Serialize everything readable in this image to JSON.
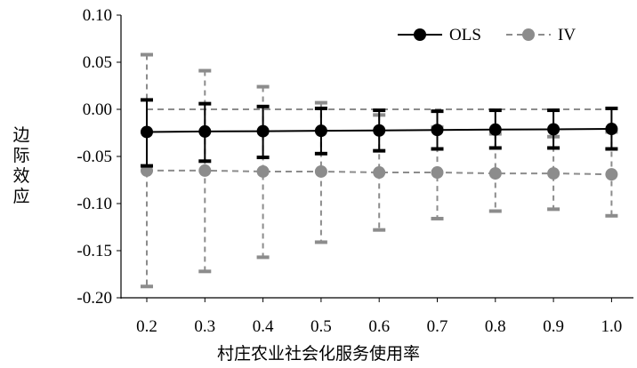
{
  "chart_data": {
    "type": "line",
    "x": [
      "0.2",
      "0.3",
      "0.4",
      "0.5",
      "0.6",
      "0.7",
      "0.8",
      "0.9",
      "1.0"
    ],
    "xlabel": "村庄农业社会化服务使用率",
    "ylabel": "边际效应",
    "ylim": [
      -0.2,
      0.1
    ],
    "yticks": [
      "0.10",
      "0.05",
      "0.00",
      "-0.05",
      "-0.10",
      "-0.15",
      "-0.20"
    ],
    "legend_position": "top-right",
    "grid": false,
    "series": [
      {
        "name": "OLS",
        "color": "#000000",
        "style": "solid",
        "values": [
          -0.024,
          -0.0235,
          -0.0232,
          -0.0228,
          -0.0224,
          -0.0219,
          -0.0215,
          -0.0212,
          -0.0208
        ],
        "upper": [
          0.01,
          0.006,
          0.003,
          0.001,
          -0.001,
          -0.002,
          -0.001,
          -0.001,
          0.001
        ],
        "lower": [
          -0.06,
          -0.055,
          -0.051,
          -0.047,
          -0.044,
          -0.042,
          -0.041,
          -0.041,
          -0.042
        ]
      },
      {
        "name": "IV",
        "color": "#8c8c8c",
        "style": "dashed",
        "values": [
          -0.065,
          -0.065,
          -0.066,
          -0.066,
          -0.067,
          -0.067,
          -0.068,
          -0.068,
          -0.069
        ],
        "upper": [
          0.058,
          0.041,
          0.024,
          0.007,
          -0.006,
          -0.019,
          -0.026,
          -0.029,
          -0.024
        ],
        "lower": [
          -0.188,
          -0.172,
          -0.157,
          -0.141,
          -0.128,
          -0.116,
          -0.108,
          -0.106,
          -0.113
        ]
      }
    ],
    "reference_line_y": 0
  }
}
